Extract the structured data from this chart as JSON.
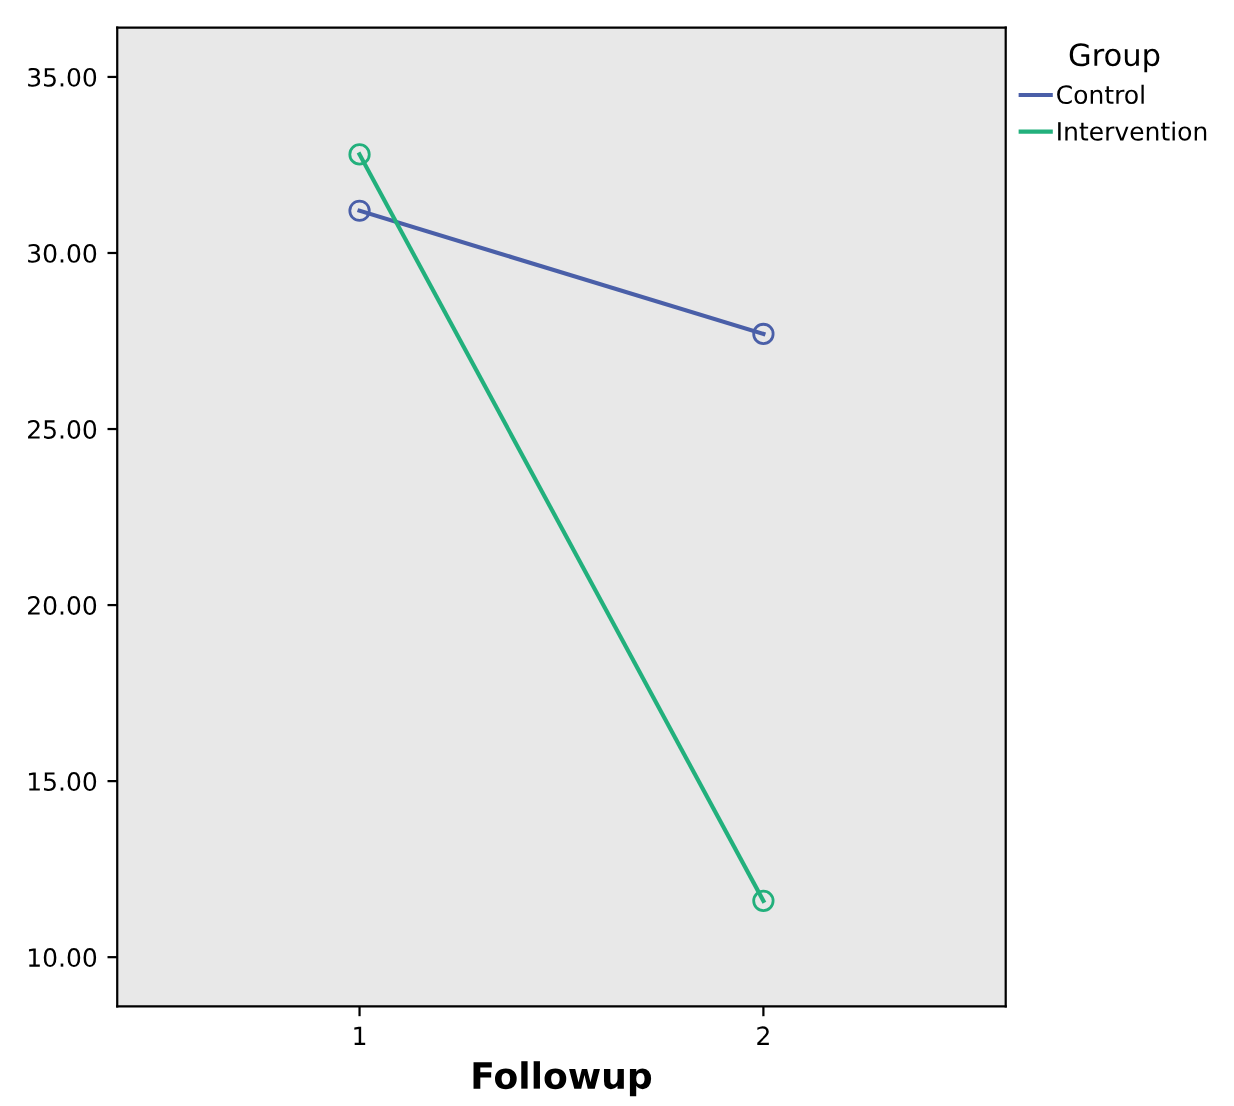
{
  "chart_data": {
    "type": "line",
    "xlabel": "Followup",
    "legend_title": "Group",
    "legend": "top right",
    "x": [
      1,
      2
    ],
    "xlim": [
      0.4,
      2.6
    ],
    "xticks": [
      1,
      2
    ],
    "ylim": [
      8.6,
      36.4
    ],
    "yticks": [
      {
        "value": 10,
        "label": "10.00"
      },
      {
        "value": 15,
        "label": "15.00"
      },
      {
        "value": 20,
        "label": "20.00"
      },
      {
        "value": 25,
        "label": "25.00"
      },
      {
        "value": 30,
        "label": "30.00"
      },
      {
        "value": 35,
        "label": "35.00"
      }
    ],
    "marker": "circle",
    "line_style": "solid",
    "grid": false,
    "series": [
      {
        "name": "Control",
        "color": "#4a5fa8",
        "values": [
          31.2,
          27.7
        ]
      },
      {
        "name": "Intervention",
        "color": "#22b07c",
        "values": [
          32.8,
          11.6
        ]
      }
    ]
  }
}
